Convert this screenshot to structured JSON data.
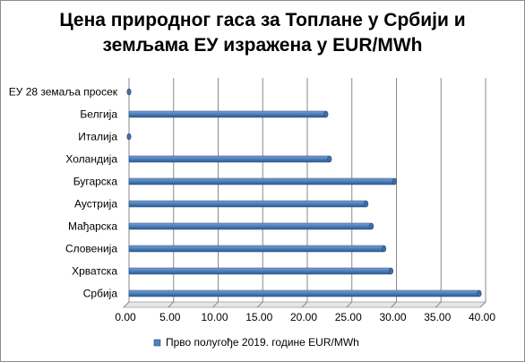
{
  "chart_data": {
    "type": "bar",
    "orientation": "horizontal",
    "title_lines": [
      "Цена природног гаса за Топлане у Србији и",
      "земљама ЕУ изражена у EUR/MWh"
    ],
    "categories": [
      "Србија",
      "Хрватска",
      "Словенија",
      "Мађарска",
      "Аустрија",
      "Бугарска",
      "Холандија",
      "Италија",
      "Белгија",
      "ЕУ 28 земаља просек"
    ],
    "series": [
      {
        "name": "Прво полугође 2019. године EUR/MWh",
        "values": [
          39.3,
          29.4,
          28.6,
          27.2,
          26.6,
          29.8,
          22.5,
          0,
          22.1,
          0
        ]
      }
    ],
    "xlim": [
      0,
      40
    ],
    "xticks": [
      "0.00",
      "5.00",
      "10.00",
      "15.00",
      "20.00",
      "25.00",
      "30.00",
      "35.00",
      "40.00"
    ],
    "grid": "vertical",
    "legend_position": "bottom",
    "bar_color": "#4f81bd"
  }
}
